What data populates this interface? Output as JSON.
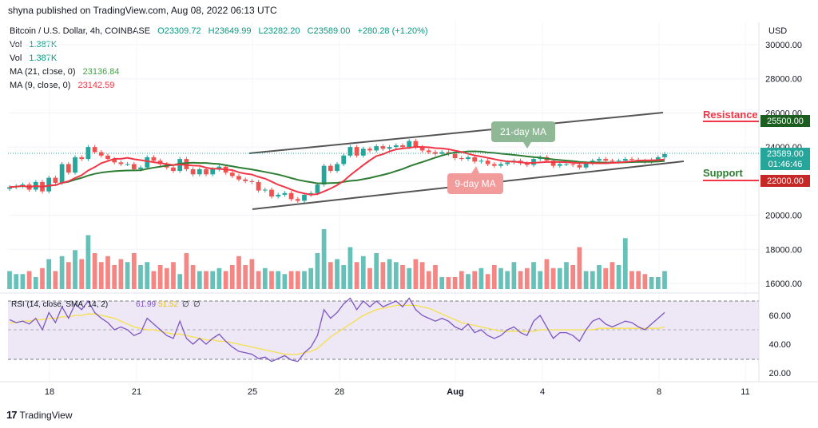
{
  "header": {
    "published": "shyna published on TradingView.com, Aug 08, 2022 06:13 UTC"
  },
  "legend": {
    "symbol": "Bitcoin / U.S. Dollar, 4h, COINBASE",
    "open": "O23309.72",
    "high": "H23649.99",
    "low": "L23282.20",
    "close": "C23589.00",
    "change": "+280.28 (+1.20%)",
    "vol1_label": "Vol",
    "vol1_value": "1.387K",
    "vol2_label": "Vol",
    "vol2_value": "1.387K",
    "ma21_label": "MA (21, close, 0)",
    "ma21_value": "23136.84",
    "ma9_label": "MA (9, close, 0)",
    "ma9_value": "23142.59"
  },
  "rsi_legend": {
    "label": "RSI (14, close, SMA, 14, 2)",
    "v1": "61.99",
    "v2": "51.52",
    "v3": "∅",
    "v4": "∅"
  },
  "annotations": {
    "resistance": "Resistance",
    "resistance_price": "25500.00",
    "support": "Support",
    "support_price": "22000.00",
    "ma21": "21-day MA",
    "ma9": "9-day MA",
    "last_price": "23589.00",
    "countdown": "01:46:46"
  },
  "axis": {
    "currency": "USD",
    "price_ticks": [
      "30000.00",
      "28000.00",
      "26000.00",
      "24000.00",
      "22000.00",
      "20000.00",
      "18000.00",
      "16000.00"
    ],
    "rsi_ticks": [
      "60.00",
      "40.00",
      "20.00"
    ],
    "x_ticks": [
      "18",
      "21",
      "25",
      "28",
      "Aug",
      "4",
      "8",
      "11"
    ]
  },
  "footer": {
    "brand": "TradingView",
    "logo": "17"
  },
  "colors": {
    "up": "#26a69a",
    "down": "#ef5350",
    "ma21": "#43a047",
    "ma9": "#f23645",
    "rsi": "#7e57c2",
    "rsi_sma": "#f6e04b",
    "channel": "#555555"
  },
  "chart_data": {
    "type": "candlestick",
    "symbol": "BTCUSD",
    "timeframe": "4h",
    "x_ticks": [
      "18",
      "21",
      "25",
      "28",
      "Aug",
      "4",
      "8",
      "11"
    ],
    "close": [
      21650,
      21700,
      21800,
      21500,
      21950,
      21400,
      22200,
      21900,
      23000,
      22500,
      23400,
      23300,
      24000,
      23700,
      23500,
      23300,
      23100,
      23000,
      23000,
      22700,
      22800,
      23400,
      23200,
      23000,
      22800,
      22600,
      23300,
      22700,
      22400,
      22700,
      22400,
      22700,
      22850,
      22500,
      22300,
      22100,
      22000,
      21950,
      21450,
      21500,
      21100,
      21200,
      21300,
      20950,
      20850,
      21200,
      21300,
      21800,
      22900,
      22600,
      23000,
      23500,
      24000,
      23500,
      23900,
      23800,
      24050,
      23900,
      24000,
      24100,
      24000,
      24350,
      24000,
      23800,
      23700,
      23600,
      23700,
      23600,
      23350,
      23300,
      23400,
      23150,
      23200,
      23000,
      22900,
      23000,
      23100,
      23200,
      23050,
      22950,
      23300,
      23400,
      23200,
      22900,
      23000,
      23000,
      22950,
      22800,
      23050,
      23200,
      23300,
      23200,
      23150,
      23200,
      23300,
      23250,
      23200,
      23150,
      23250,
      23400,
      23589
    ],
    "volume_relative": [
      0.3,
      0.25,
      0.25,
      0.3,
      0.2,
      0.35,
      0.5,
      0.3,
      0.55,
      0.45,
      0.65,
      0.5,
      0.9,
      0.6,
      0.45,
      0.55,
      0.4,
      0.5,
      0.45,
      0.6,
      0.4,
      0.45,
      0.3,
      0.4,
      0.35,
      0.45,
      0.25,
      0.6,
      0.4,
      0.3,
      0.3,
      0.3,
      0.35,
      0.3,
      0.4,
      0.55,
      0.4,
      0.5,
      0.3,
      0.35,
      0.3,
      0.3,
      0.25,
      0.3,
      0.3,
      0.3,
      0.35,
      0.6,
      1.0,
      0.45,
      0.5,
      0.4,
      0.7,
      0.45,
      0.55,
      0.35,
      0.6,
      0.45,
      0.5,
      0.45,
      0.4,
      0.35,
      0.5,
      0.45,
      0.3,
      0.4,
      0.2,
      0.2,
      0.2,
      0.3,
      0.25,
      0.3,
      0.35,
      0.25,
      0.4,
      0.35,
      0.3,
      0.45,
      0.3,
      0.35,
      0.45,
      0.3,
      0.5,
      0.35,
      0.35,
      0.45,
      0.4,
      0.7,
      0.3,
      0.3,
      0.4,
      0.35,
      0.45,
      0.4,
      0.85,
      0.3,
      0.3,
      0.25,
      0.2,
      0.2,
      0.3
    ],
    "rsi": [
      57,
      55,
      56,
      54,
      58,
      50,
      62,
      55,
      66,
      58,
      68,
      64,
      70,
      62,
      58,
      55,
      50,
      52,
      50,
      46,
      48,
      58,
      54,
      50,
      46,
      44,
      56,
      44,
      40,
      44,
      40,
      44,
      47,
      42,
      38,
      35,
      34,
      33,
      30,
      31,
      28,
      30,
      32,
      29,
      28,
      34,
      38,
      46,
      64,
      58,
      62,
      68,
      72,
      64,
      70,
      66,
      70,
      66,
      68,
      70,
      66,
      72,
      64,
      60,
      58,
      56,
      58,
      56,
      52,
      50,
      54,
      48,
      50,
      46,
      44,
      46,
      50,
      52,
      48,
      46,
      56,
      60,
      52,
      44,
      48,
      48,
      46,
      42,
      50,
      56,
      58,
      54,
      52,
      54,
      56,
      55,
      52,
      50,
      54,
      58,
      62
    ],
    "rsi_sma": [
      55,
      55,
      56,
      56,
      57,
      57,
      58,
      58,
      59,
      59,
      60,
      60,
      61,
      61,
      60,
      59,
      58,
      56,
      54,
      52,
      51,
      50,
      50,
      49,
      48,
      47,
      47,
      46,
      45,
      44,
      43,
      43,
      42,
      42,
      41,
      40,
      39,
      38,
      37,
      36,
      35,
      34,
      33,
      33,
      33,
      34,
      35,
      37,
      41,
      45,
      48,
      51,
      54,
      57,
      60,
      62,
      64,
      65,
      66,
      67,
      67,
      67,
      67,
      66,
      65,
      63,
      61,
      59,
      57,
      55,
      54,
      53,
      52,
      51,
      50,
      49,
      49,
      49,
      49,
      49,
      49,
      50,
      50,
      50,
      50,
      50,
      50,
      50,
      50,
      50,
      51,
      51,
      51,
      51,
      51,
      51,
      51,
      51,
      51,
      51,
      52
    ],
    "y_range": [
      15500,
      31000
    ],
    "rsi_range": [
      15,
      72
    ],
    "levels": {
      "resistance": 25500,
      "support": 22000
    },
    "series": [
      {
        "name": "MA (21, close, 0)",
        "last": 23136.84
      },
      {
        "name": "MA (9, close, 0)",
        "last": 23142.59
      }
    ]
  }
}
